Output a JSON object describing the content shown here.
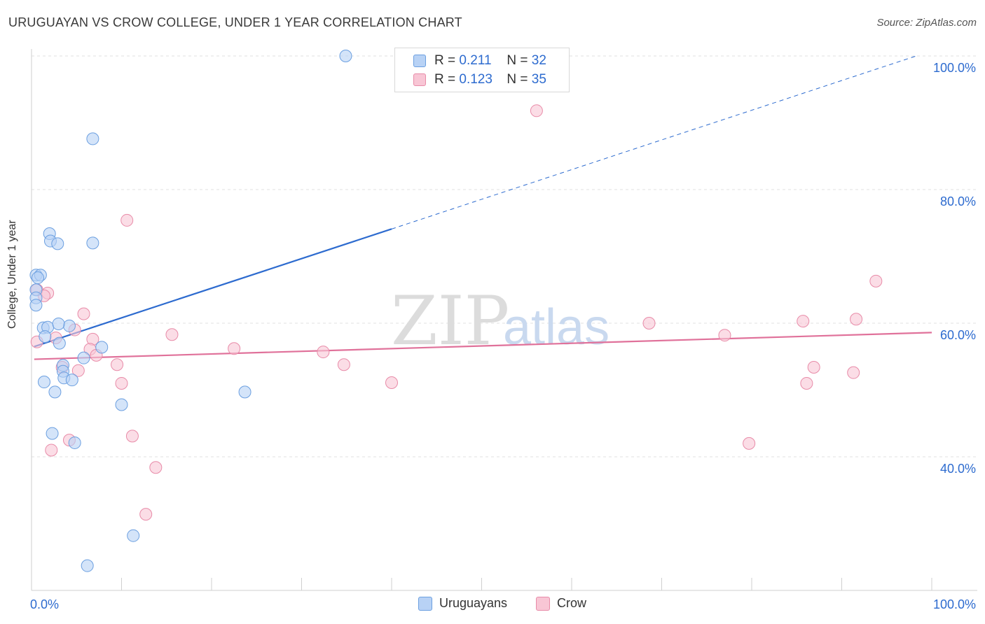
{
  "title": "URUGUAYAN VS CROW COLLEGE, UNDER 1 YEAR CORRELATION CHART",
  "source": "Source: ZipAtlas.com",
  "watermark": {
    "zip": "ZIP",
    "atlas": "atlas"
  },
  "legend": {
    "r_label": "R =",
    "n_label": "N =",
    "rows": [
      {
        "r": "0.211",
        "n": "32",
        "fill": "#b8d2f5",
        "stroke": "#6b9fe0"
      },
      {
        "r": "0.123",
        "n": "35",
        "fill": "#f8c6d5",
        "stroke": "#e88ba8"
      }
    ]
  },
  "bottom_legend": [
    "Uruguayans",
    "Crow"
  ],
  "chart_data": {
    "type": "scatter",
    "title": "URUGUAYAN VS CROW COLLEGE, UNDER 1 YEAR CORRELATION CHART",
    "xlabel": "",
    "ylabel": "College, Under 1 year",
    "xlim": [
      0,
      100
    ],
    "ylim": [
      22,
      103
    ],
    "x_tick_labels": [
      "0.0%",
      "100.0%"
    ],
    "y_ticks": [
      40,
      60,
      80,
      100
    ],
    "y_tick_labels": [
      "40.0%",
      "60.0%",
      "80.0%",
      "100.0%"
    ],
    "grid": true,
    "series": [
      {
        "name": "Uruguayans",
        "color": "#6b9fe0",
        "fill": "#b8d2f5",
        "line_color": "#2d6bcf",
        "r": 0.211,
        "n": 32,
        "trend": {
          "x0": 0.3,
          "y0": 56.5,
          "x1": 40.0,
          "y1": 74.1,
          "x_dash_end": 98.5,
          "y_dash_end": 100.1
        },
        "points": [
          [
            34.9,
            100.0
          ],
          [
            6.8,
            87.6
          ],
          [
            2.0,
            73.4
          ],
          [
            2.1,
            72.3
          ],
          [
            2.9,
            71.9
          ],
          [
            6.8,
            72.0
          ],
          [
            0.5,
            67.2
          ],
          [
            1.0,
            67.2
          ],
          [
            0.7,
            66.8
          ],
          [
            0.5,
            65.0
          ],
          [
            0.5,
            63.8
          ],
          [
            0.5,
            62.7
          ],
          [
            1.3,
            59.3
          ],
          [
            1.8,
            59.4
          ],
          [
            4.2,
            59.6
          ],
          [
            3.0,
            59.9
          ],
          [
            1.5,
            58.0
          ],
          [
            3.1,
            57.0
          ],
          [
            7.8,
            56.4
          ],
          [
            5.8,
            54.8
          ],
          [
            3.5,
            53.7
          ],
          [
            3.5,
            52.8
          ],
          [
            3.6,
            51.8
          ],
          [
            4.5,
            51.5
          ],
          [
            1.4,
            51.2
          ],
          [
            2.6,
            49.7
          ],
          [
            23.7,
            49.7
          ],
          [
            10.0,
            47.8
          ],
          [
            2.3,
            43.5
          ],
          [
            4.8,
            42.1
          ],
          [
            11.3,
            28.2
          ],
          [
            6.2,
            23.7
          ]
        ]
      },
      {
        "name": "Crow",
        "color": "#e88ba8",
        "fill": "#f8c6d5",
        "line_color": "#e0719a",
        "r": 0.123,
        "n": 35,
        "trend": {
          "x0": 0.3,
          "y0": 54.6,
          "x1": 100.0,
          "y1": 58.6
        },
        "points": [
          [
            56.1,
            91.8
          ],
          [
            10.6,
            75.4
          ],
          [
            93.8,
            66.3
          ],
          [
            0.6,
            65.0
          ],
          [
            1.8,
            64.5
          ],
          [
            1.4,
            64.1
          ],
          [
            5.8,
            61.4
          ],
          [
            91.6,
            60.6
          ],
          [
            85.7,
            60.3
          ],
          [
            68.6,
            60.0
          ],
          [
            4.8,
            59.0
          ],
          [
            15.6,
            58.3
          ],
          [
            77.0,
            58.2
          ],
          [
            0.6,
            57.2
          ],
          [
            6.8,
            57.6
          ],
          [
            2.7,
            57.8
          ],
          [
            22.5,
            56.2
          ],
          [
            6.5,
            56.1
          ],
          [
            32.4,
            55.7
          ],
          [
            7.2,
            55.2
          ],
          [
            3.4,
            53.4
          ],
          [
            9.5,
            53.8
          ],
          [
            34.7,
            53.8
          ],
          [
            86.9,
            53.4
          ],
          [
            5.2,
            52.9
          ],
          [
            91.3,
            52.6
          ],
          [
            10.0,
            51.0
          ],
          [
            40.0,
            51.1
          ],
          [
            86.1,
            51.0
          ],
          [
            11.2,
            43.1
          ],
          [
            4.2,
            42.5
          ],
          [
            79.7,
            42.0
          ],
          [
            2.2,
            41.0
          ],
          [
            13.8,
            38.4
          ],
          [
            12.7,
            31.4
          ]
        ]
      }
    ]
  }
}
